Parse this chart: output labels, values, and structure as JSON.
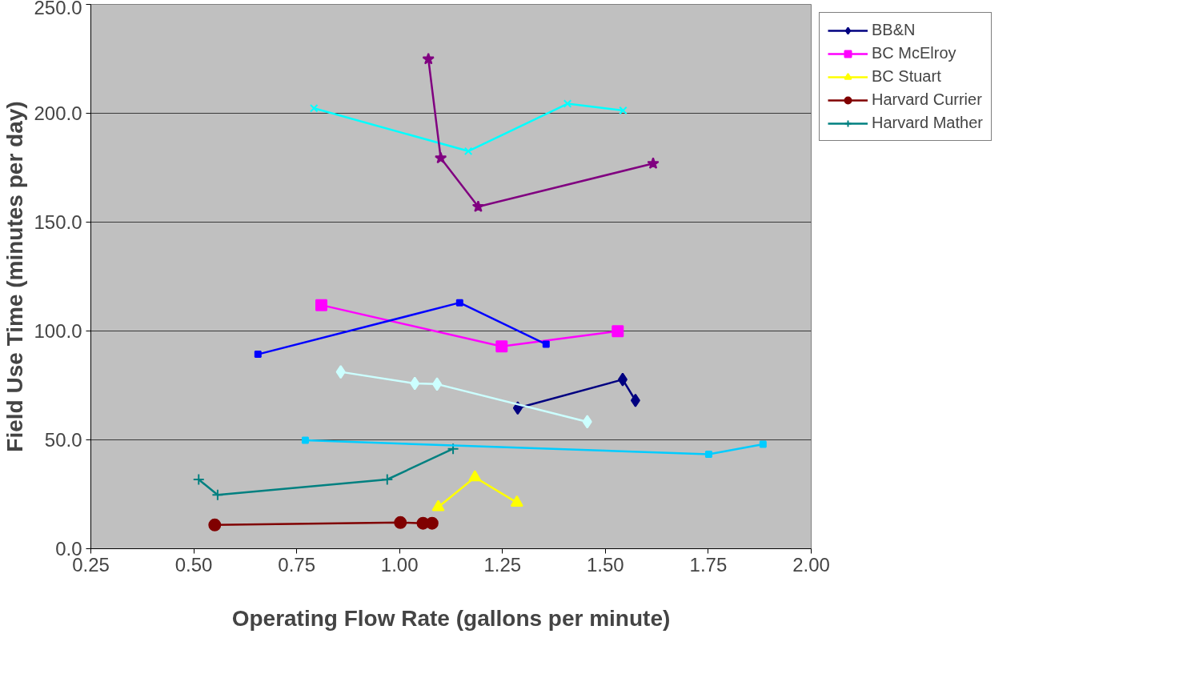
{
  "chart_data": {
    "type": "line",
    "xlabel": "Operating Flow Rate (gallons per minute)",
    "ylabel": "Field Use Time (minutes per day)",
    "xlim": [
      0.25,
      2.0
    ],
    "ylim": [
      0,
      250
    ],
    "xticks": [
      {
        "value": 0.25,
        "label": "0.25"
      },
      {
        "value": 0.5,
        "label": "0.50"
      },
      {
        "value": 0.75,
        "label": "0.75"
      },
      {
        "value": 1.0,
        "label": "1.00"
      },
      {
        "value": 1.25,
        "label": "1.25"
      },
      {
        "value": 1.5,
        "label": "1.50"
      },
      {
        "value": 1.75,
        "label": "1.75"
      },
      {
        "value": 2.0,
        "label": "2.00"
      }
    ],
    "yticks": [
      {
        "value": 0,
        "label": "0.0"
      },
      {
        "value": 50,
        "label": "50.0"
      },
      {
        "value": 100,
        "label": "100.0"
      },
      {
        "value": 150,
        "label": "150.0"
      },
      {
        "value": 200,
        "label": "200.0"
      },
      {
        "value": 250,
        "label": "250.0"
      }
    ],
    "grid": "y",
    "legend": "right",
    "series": [
      {
        "name": "BB&N",
        "color": "#000080",
        "marker": "diamond",
        "x": [
          1.287,
          1.542,
          1.573
        ],
        "values": [
          64.6,
          77.7,
          68.1
        ]
      },
      {
        "name": "BC McElroy",
        "color": "#ff00ff",
        "marker": "square",
        "x": [
          0.81,
          1.248,
          1.53
        ],
        "values": [
          111.9,
          92.9,
          99.9
        ]
      },
      {
        "name": "BC Stuart",
        "color": "#ffff00",
        "marker": "triangle",
        "x": [
          1.094,
          1.183,
          1.285
        ],
        "values": [
          19.1,
          32.8,
          21.2
        ]
      },
      {
        "color": "#00ffff",
        "marker": "x",
        "x": [
          0.792,
          1.167,
          1.408,
          1.543
        ],
        "values": [
          202.3,
          182.6,
          204.4,
          201.3
        ]
      },
      {
        "color": "#800080",
        "marker": "star",
        "x": [
          1.07,
          1.1,
          1.191,
          1.616
        ],
        "values": [
          224.9,
          179.4,
          157.1,
          176.9
        ]
      },
      {
        "name": "Harvard Currier",
        "color": "#800000",
        "marker": "circle",
        "x": [
          0.551,
          1.002,
          1.057,
          1.079
        ],
        "values": [
          10.9,
          12.0,
          11.7,
          11.7
        ]
      },
      {
        "name": "Harvard Mather",
        "color": "#008080",
        "marker": "cross",
        "x": [
          0.512,
          0.558,
          0.97,
          1.13
        ],
        "values": [
          31.8,
          24.7,
          31.8,
          45.9
        ]
      },
      {
        "color": "#0000ff",
        "marker": "square",
        "x": [
          0.656,
          1.146,
          1.356
        ],
        "values": [
          89.3,
          113.0,
          93.9
        ]
      },
      {
        "color": "#00ccff",
        "marker": "square",
        "x": [
          0.771,
          1.751,
          1.883
        ],
        "values": [
          49.8,
          43.4,
          48.0
        ]
      },
      {
        "color": "#ccffff",
        "marker": "diamond",
        "x": [
          0.857,
          1.037,
          1.091,
          1.456
        ],
        "values": [
          81.2,
          75.9,
          75.6,
          58.3
        ]
      }
    ]
  }
}
